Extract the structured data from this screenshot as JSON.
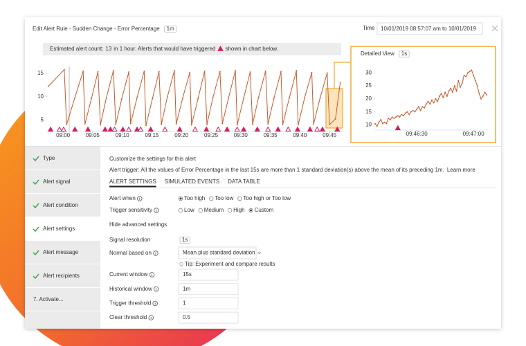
{
  "header": {
    "title": "Edit Alert Rule - Sudden Change - Error Percentage",
    "resolution": "1m",
    "time_label": "Time",
    "time_range": "10/01/2019 08:57:07 am to 10/01/2019"
  },
  "estimate": {
    "prefix": "Estimated alert count:",
    "count": 13,
    "middle": "in 1 hour. Alerts that would have triggered",
    "suffix": "shown in chart below."
  },
  "chart_data": [
    {
      "type": "line",
      "x": [
        537.5,
        540.2,
        540.6,
        542.0,
        543.4,
        543.7,
        544.8,
        545.9,
        546.3,
        547.3,
        548.5,
        548.9,
        549.9,
        551.1,
        551.4,
        552.5,
        553.7,
        554.0,
        555.1,
        556.2,
        556.6,
        557.6,
        558.8,
        559.1,
        560.2,
        561.4,
        561.7,
        562.8,
        563.9,
        564.3,
        565.3,
        566.5,
        566.9,
        567.9,
        569.1,
        569.4,
        570.5,
        571.6,
        572.0,
        573.0,
        574.2,
        574.6,
        575.6,
        576.8,
        577.1,
        578.2,
        579.4,
        579.7,
        580.8,
        582.0,
        582.3,
        583.4,
        584.6,
        585.0,
        586.0,
        586.8
      ],
      "values": [
        12.2,
        15.8,
        4,
        9.8,
        15.5,
        4.1,
        9.6,
        15.4,
        3.9,
        9.7,
        15.6,
        4,
        9.5,
        15.3,
        4.2,
        9.8,
        15.5,
        3.8,
        9.6,
        15.4,
        4,
        9.9,
        15.6,
        4.1,
        9.7,
        15.2,
        3.9,
        9.6,
        15.5,
        4,
        9.8,
        15.4,
        4.2,
        9.5,
        15.6,
        3.9,
        9.7,
        15.3,
        4,
        9.8,
        15.5,
        4.1,
        9.6,
        15.4,
        4,
        9.7,
        15.6,
        3.9,
        9.8,
        15.2,
        4.1,
        9.7,
        15.1,
        4,
        5.2,
        13
      ],
      "color": "#c8582a",
      "xlim": [
        537.3,
        587.2
      ],
      "ylim": [
        2.5,
        16.5
      ],
      "xticks": [
        {
          "value": 540,
          "label": "09:00"
        },
        {
          "value": 545,
          "label": "09:05"
        },
        {
          "value": 550,
          "label": "09:10"
        },
        {
          "value": 555,
          "label": "09:15"
        },
        {
          "value": 560,
          "label": "09:20"
        },
        {
          "value": 565,
          "label": "09:25"
        },
        {
          "value": 570,
          "label": "09:30"
        },
        {
          "value": 575,
          "label": "09:35"
        },
        {
          "value": 580,
          "label": "09:40"
        },
        {
          "value": 585,
          "label": "09:45"
        }
      ],
      "yticks": [
        5,
        10,
        15
      ],
      "alerts": {
        "color": "#d81b60",
        "triggered": [
          537.9,
          542.0,
          544.2,
          547.1,
          548.0,
          550.1,
          552.5,
          554.8,
          559.7,
          564.2,
          567.7,
          570.5,
          572.8,
          576.3,
          579.6,
          581.7,
          583.8,
          586.3
        ],
        "simulated": [
          539.4,
          540.1,
          548.7,
          551.1,
          553.1,
          557.2,
          562.3,
          566.2,
          569.4,
          574.6,
          578.0,
          582.9
        ]
      }
    },
    {
      "type": "line",
      "x": [
        35168,
        35169,
        35170,
        35171,
        35172,
        35173,
        35174,
        35175,
        35176,
        35177,
        35178,
        35179,
        35180,
        35181,
        35182,
        35183,
        35184,
        35185,
        35186,
        35187,
        35188,
        35189,
        35190,
        35191,
        35192,
        35193,
        35194,
        35195,
        35196,
        35197,
        35198,
        35199,
        35200,
        35201,
        35202,
        35203,
        35204,
        35205,
        35206,
        35207,
        35208,
        35209,
        35210,
        35211,
        35212,
        35213,
        35214,
        35215,
        35216,
        35217,
        35218,
        35219,
        35220,
        35221,
        35222,
        35223,
        35224,
        35225,
        35226,
        35227
      ],
      "values": [
        10.5,
        9.5,
        11,
        12,
        10.5,
        11,
        10.5,
        12.5,
        12,
        13,
        12.5,
        13,
        13.5,
        13,
        14,
        13.5,
        14.5,
        15,
        14,
        15,
        15.5,
        15,
        16,
        17,
        15.5,
        17,
        16.5,
        18,
        19,
        18,
        19.5,
        18.5,
        20,
        19,
        21,
        22,
        20.5,
        22.5,
        21,
        23,
        24,
        22.5,
        25,
        23,
        27,
        24.5,
        26,
        29,
        28.5,
        30,
        30.5,
        31,
        29,
        27,
        25,
        22,
        20,
        21,
        22.5,
        21.5
      ],
      "color": "#c8582a",
      "xlim": [
        35168,
        35228
      ],
      "ylim": [
        8,
        33.5
      ],
      "xticks": [
        {
          "value": 35190,
          "label": "09:46:30"
        },
        {
          "value": 35220,
          "label": "09:47:00"
        }
      ],
      "yticks": [
        10,
        15,
        20,
        25,
        30
      ],
      "alerts": {
        "color": "#d81b60",
        "triggered": [
          35180
        ],
        "simulated": []
      }
    }
  ],
  "detail_view": {
    "title": "Detailed View",
    "resolution": "1s"
  },
  "nav": {
    "active": 3,
    "items": [
      {
        "label": "Type",
        "done": true
      },
      {
        "label": "Alert signal",
        "done": true
      },
      {
        "label": "Alert condition",
        "done": true
      },
      {
        "label": "Alert settings",
        "done": true
      },
      {
        "label": "Alert message",
        "done": true
      },
      {
        "label": "Alert recipients",
        "done": true
      },
      {
        "label": "7. Activate...",
        "done": false
      }
    ]
  },
  "settings": {
    "heading": "Customize the settings for this alert",
    "trigger": "Alert trigger: All the values of Error Percentage in the last 15s are more than 1 standard deviation(s) above the mean of its preceding 1m.",
    "learn_more": "Learn more",
    "tabs": [
      "ALERT SETTINGS",
      "SIMULATED EVENTS",
      "DATA TABLE"
    ],
    "active_tab": 0,
    "alert_when": {
      "label": "Alert when",
      "options": [
        "Too high",
        "Too low",
        "Too high or Too low"
      ],
      "selected": 0
    },
    "sensitivity": {
      "label": "Trigger sensitivity",
      "options": [
        "Low",
        "Medium",
        "High",
        "Custom"
      ],
      "selected": 3
    },
    "advanced_toggle": "Hide advanced settings",
    "signal_resolution": {
      "label": "Signal resolution",
      "value": "1s"
    },
    "normal_based_on": {
      "label": "Normal based on",
      "value": "Mean plus standard deviation"
    },
    "tip": "Tip: Experiment and compare results",
    "fields": [
      {
        "label": "Current window",
        "value": "15s"
      },
      {
        "label": "Historical window",
        "value": "1m"
      },
      {
        "label": "Trigger threshold",
        "value": "1"
      },
      {
        "label": "Clear threshold",
        "value": "0.5"
      }
    ]
  }
}
